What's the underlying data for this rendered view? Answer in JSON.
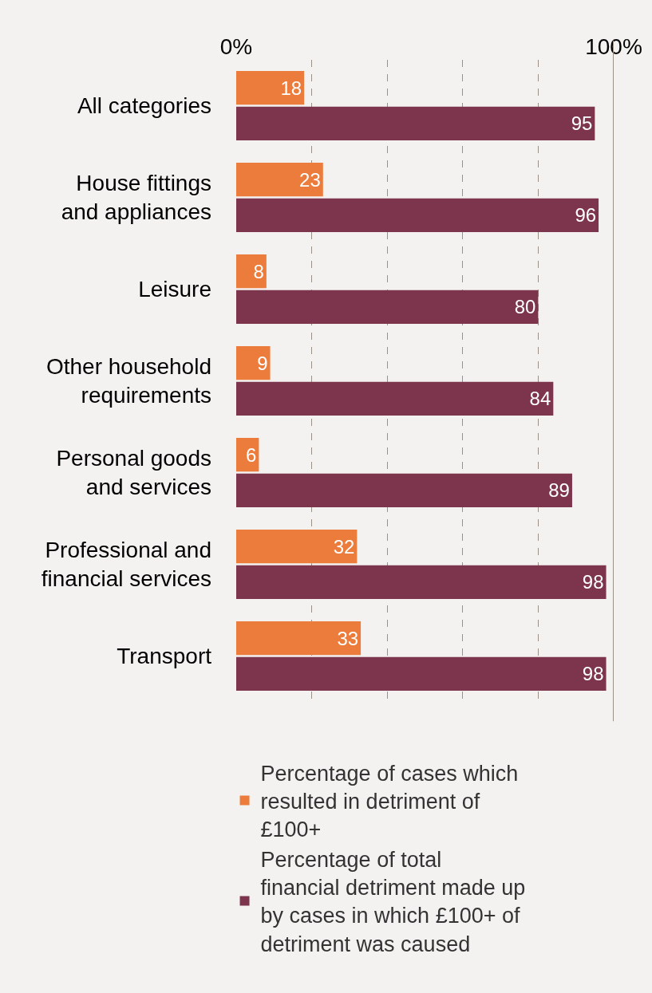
{
  "chart_data": {
    "type": "bar",
    "orientation": "horizontal",
    "categories": [
      "All categories",
      "House fittings and appliances",
      "Leisure",
      "Other household requirements",
      "Personal goods and services",
      "Professional and financial services",
      "Transport"
    ],
    "series": [
      {
        "name": "Percentage of cases which resulted in detriment of £100+",
        "color": "#ec7c3c",
        "values": [
          18,
          23,
          8,
          9,
          6,
          32,
          33
        ]
      },
      {
        "name": "Percentage of total financial detriment made up by cases in which £100+ of detriment was caused",
        "color": "#7d354e",
        "values": [
          95,
          96,
          80,
          84,
          89,
          98,
          98
        ]
      }
    ],
    "xlim": [
      0,
      100
    ],
    "xticks": [
      {
        "value": 0,
        "label": "0%"
      },
      {
        "value": 20,
        "label": null
      },
      {
        "value": 40,
        "label": null
      },
      {
        "value": 60,
        "label": null
      },
      {
        "value": 80,
        "label": null
      },
      {
        "value": 100,
        "label": "100%"
      }
    ],
    "grid": "x",
    "data_labels": true,
    "legend": "bottom",
    "ref_lines": [
      {
        "axis": "x",
        "value": 100,
        "color": "#9a9289",
        "line_style": "solid"
      }
    ]
  }
}
